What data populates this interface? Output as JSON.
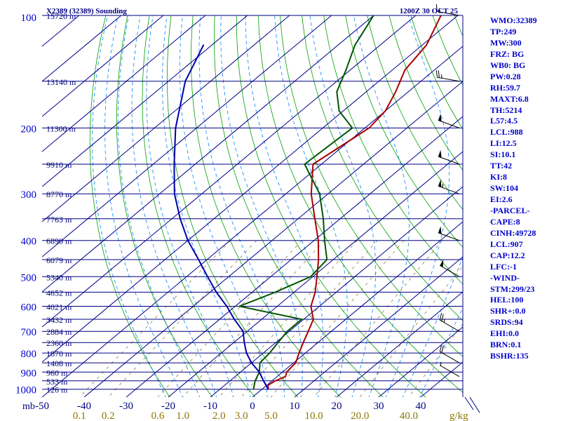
{
  "header": {
    "station": "X2389 (32389) Sounding",
    "time": "1200Z 30 OCT 25"
  },
  "chart_data": {
    "type": "skew-t",
    "title": "X2389 (32389) Sounding",
    "valid_time": "1200Z 30 OCT 25",
    "pressure_axis_label": "mb",
    "pressure_ticks": [
      100,
      200,
      300,
      400,
      500,
      600,
      700,
      800,
      900,
      1000
    ],
    "pressure_range": [
      100,
      1050
    ],
    "temperature_axis_ticks": [
      -50,
      -40,
      -30,
      -20,
      -10,
      0,
      10,
      20,
      30,
      40
    ],
    "temperature_range_bottom": [
      -50,
      50
    ],
    "mixing_ratio_label": "g/kg",
    "mixing_ratio_ticks": [
      "0.1",
      "0.2",
      "0.6",
      "1.0",
      "2.0",
      "3.0",
      "5.0",
      "10.0",
      "20.0",
      "40.0"
    ],
    "mixing_ratio_values": [
      0.1,
      0.2,
      0.6,
      1.0,
      2.0,
      3.0,
      5.0,
      10.0,
      20.0,
      40.0
    ],
    "height_levels": [
      {
        "p": 100,
        "label": "15720 m"
      },
      {
        "p": 150,
        "label": "13140 m"
      },
      {
        "p": 200,
        "label": "11300 m"
      },
      {
        "p": 250,
        "label": "9910 m"
      },
      {
        "p": 300,
        "label": "8770 m"
      },
      {
        "p": 350,
        "label": "7763 m"
      },
      {
        "p": 400,
        "label": "6890 m"
      },
      {
        "p": 450,
        "label": "6079 m"
      },
      {
        "p": 500,
        "label": "5340 m"
      },
      {
        "p": 550,
        "label": "4652 m"
      },
      {
        "p": 600,
        "label": "4021 m"
      },
      {
        "p": 650,
        "label": "3432 m"
      },
      {
        "p": 700,
        "label": "2884 m"
      },
      {
        "p": 750,
        "label": "2360 m"
      },
      {
        "p": 800,
        "label": "1870 m"
      },
      {
        "p": 850,
        "label": "1408 m"
      },
      {
        "p": 900,
        "label": "960 m"
      },
      {
        "p": 950,
        "label": "533 m"
      },
      {
        "p": 1000,
        "label": "126 m"
      }
    ],
    "series": [
      {
        "name": "Temperature",
        "color": "#aa0000",
        "points": [
          [
            1000,
            1.5
          ],
          [
            975,
            0.3
          ],
          [
            950,
            0.8
          ],
          [
            925,
            2.0
          ],
          [
            900,
            1.0
          ],
          [
            850,
            0.5
          ],
          [
            800,
            -1.5
          ],
          [
            750,
            -3.5
          ],
          [
            700,
            -5.5
          ],
          [
            650,
            -7.7
          ],
          [
            600,
            -12.0
          ],
          [
            550,
            -15.0
          ],
          [
            500,
            -19.0
          ],
          [
            450,
            -23.5
          ],
          [
            400,
            -29.0
          ],
          [
            350,
            -36.0
          ],
          [
            300,
            -44.0
          ],
          [
            250,
            -52.0
          ],
          [
            200,
            -49.0
          ],
          [
            180,
            -50.0
          ],
          [
            160,
            -53.0
          ],
          [
            140,
            -57.0
          ],
          [
            120,
            -59.0
          ],
          [
            100,
            -64.0
          ]
        ]
      },
      {
        "name": "Dewpoint",
        "color": "#005500",
        "points": [
          [
            1000,
            -2.0
          ],
          [
            950,
            -4.0
          ],
          [
            900,
            -5.5
          ],
          [
            850,
            -8.0
          ],
          [
            800,
            -8.5
          ],
          [
            750,
            -9.5
          ],
          [
            700,
            -10.5
          ],
          [
            650,
            -10.5
          ],
          [
            600,
            -29.0
          ],
          [
            550,
            -24.5
          ],
          [
            500,
            -20.5
          ],
          [
            450,
            -21.5
          ],
          [
            400,
            -27.5
          ],
          [
            350,
            -34.0
          ],
          [
            300,
            -42.0
          ],
          [
            250,
            -54.0
          ],
          [
            200,
            -53.0
          ],
          [
            180,
            -61.0
          ],
          [
            160,
            -67.0
          ],
          [
            140,
            -71.0
          ],
          [
            120,
            -76.0
          ],
          [
            100,
            -80.0
          ]
        ]
      },
      {
        "name": "Parcel path",
        "color": "#0000aa",
        "points": [
          [
            1000,
            1.5
          ],
          [
            950,
            -2.0
          ],
          [
            900,
            -5.5
          ],
          [
            850,
            -10.0
          ],
          [
            800,
            -14.0
          ],
          [
            750,
            -17.5
          ],
          [
            700,
            -21.0
          ],
          [
            650,
            -26.5
          ],
          [
            600,
            -32.0
          ],
          [
            550,
            -38.5
          ],
          [
            500,
            -45.0
          ],
          [
            450,
            -52.0
          ],
          [
            400,
            -60.0
          ],
          [
            350,
            -68.0
          ],
          [
            300,
            -76.5
          ],
          [
            250,
            -85.0
          ],
          [
            200,
            -95.0
          ],
          [
            150,
            -106.0
          ],
          [
            120,
            -112.0
          ]
        ]
      }
    ],
    "wind_barbs": [
      {
        "p": 100,
        "dir": 280,
        "spd": 15
      },
      {
        "p": 150,
        "dir": 280,
        "spd": 25
      },
      {
        "p": 200,
        "dir": 290,
        "spd": 50
      },
      {
        "p": 250,
        "dir": 290,
        "spd": 50
      },
      {
        "p": 300,
        "dir": 290,
        "spd": 55
      },
      {
        "p": 400,
        "dir": 290,
        "spd": 50
      },
      {
        "p": 500,
        "dir": 300,
        "spd": 50
      },
      {
        "p": 700,
        "dir": 300,
        "spd": 25
      },
      {
        "p": 850,
        "dir": 300,
        "spd": 20
      },
      {
        "p": 925,
        "dir": 300,
        "spd": 5
      }
    ]
  },
  "indices": [
    "WMO:32389",
    "TP:249",
    "MW:300",
    "FRZ: BG",
    "WB0: BG",
    "PW:0.28",
    "RH:59.7",
    "MAXT:6.8",
    "TH:5214",
    "L57:4.5",
    "LCL:988",
    "LI:12.5",
    "SI:10.1",
    "TT:42",
    "KI:8",
    "SW:104",
    "EI:2.6",
    "-PARCEL-",
    "CAPE:8",
    "CINH:49728",
    "LCL:907",
    "CAP:12.2",
    "LFC:-1",
    "-WIND-",
    "STM:299/23",
    "HEL:100",
    "SHR+:0.0",
    "SRDS:94",
    "EHI:0.0",
    "BRN:0.1",
    "BSHR:135"
  ],
  "colors": {
    "isobar": "#000080",
    "isotherm": "#00008b",
    "dry_adiabat": "#00a000",
    "moist_adiabat": "#1e90ff",
    "mixing_ratio": "#8b7d3a",
    "label_blue": "#0000cc",
    "label_olive": "#8b7500"
  }
}
